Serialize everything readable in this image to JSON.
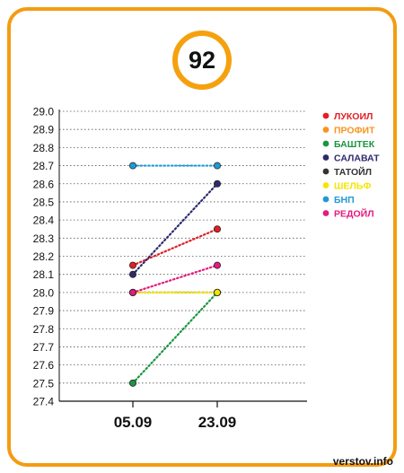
{
  "badge": {
    "value": "92"
  },
  "watermark": "verstov.info",
  "chart_data": {
    "type": "line",
    "title": "",
    "xlabel": "",
    "ylabel": "",
    "categories": [
      "05.09",
      "23.09"
    ],
    "ylim": [
      27.4,
      29.0
    ],
    "yticks": [
      "29.0",
      "28.9",
      "28.8",
      "28.7",
      "28.6",
      "28.5",
      "28.4",
      "28.3",
      "28.2",
      "28.1",
      "28.0",
      "27.9",
      "27.8",
      "27.7",
      "27.6",
      "27.5",
      "27.4"
    ],
    "grid": true,
    "legend_position": "right",
    "series": [
      {
        "name": "ЛУКОИЛ",
        "values": [
          28.15,
          28.35
        ],
        "color": "#e31e24"
      },
      {
        "name": "ПРОФИТ",
        "values": [
          null,
          null
        ],
        "color": "#f7941d"
      },
      {
        "name": "БАШТЕК",
        "values": [
          27.5,
          28.0
        ],
        "color": "#1a9641"
      },
      {
        "name": "САЛАВАТ",
        "values": [
          28.1,
          28.6
        ],
        "color": "#2e2a6e"
      },
      {
        "name": "ТАТОЙЛ",
        "values": [
          28.0,
          28.0
        ],
        "color": "#333333"
      },
      {
        "name": "ШЕЛЬФ",
        "values": [
          28.0,
          28.0
        ],
        "color": "#f5e400"
      },
      {
        "name": "БНП",
        "values": [
          28.7,
          28.7
        ],
        "color": "#1f9ad6"
      },
      {
        "name": "РЕДОЙЛ",
        "values": [
          28.0,
          28.15
        ],
        "color": "#e6197f"
      }
    ]
  }
}
